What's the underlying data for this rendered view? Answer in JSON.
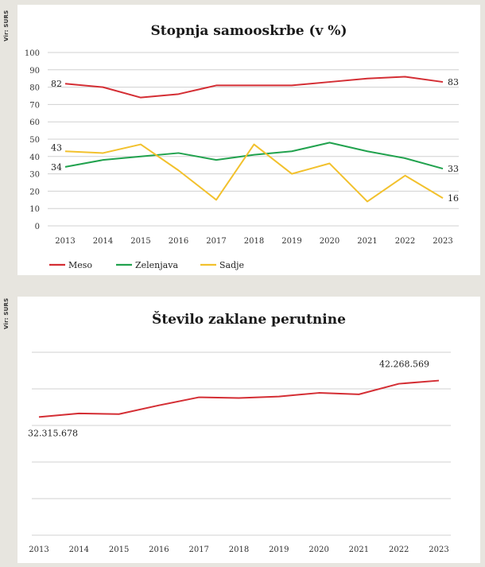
{
  "source_label": "Vir: SURS",
  "chart_data": [
    {
      "type": "line",
      "title": "Stopnja samooskrbe (v %)",
      "x": [
        "2013",
        "2014",
        "2015",
        "2016",
        "2017",
        "2018",
        "2019",
        "2020",
        "2021",
        "2022",
        "2023"
      ],
      "ylim": [
        0,
        100
      ],
      "yticks": [
        "100",
        "90",
        "80",
        "70",
        "60",
        "50",
        "40",
        "30",
        "20",
        "10",
        "0"
      ],
      "grid": true,
      "legend_position": "bottom-left",
      "series": [
        {
          "name": "Meso",
          "color": "#d42e34",
          "values": [
            82,
            80,
            74,
            76,
            81,
            81,
            81,
            83,
            85,
            86,
            83
          ],
          "start_label": "82",
          "end_label": "83"
        },
        {
          "name": "Zelenjava",
          "color": "#21a24e",
          "values": [
            34,
            38,
            40,
            42,
            38,
            41,
            43,
            48,
            43,
            39,
            33
          ],
          "start_label": "34",
          "end_label": "33"
        },
        {
          "name": "Sadje",
          "color": "#f2c12d",
          "values": [
            43,
            42,
            47,
            32,
            15,
            47,
            30,
            36,
            14,
            29,
            16
          ],
          "start_label": "43",
          "end_label": "16"
        }
      ]
    },
    {
      "type": "line",
      "title": "Število zaklane perutnine",
      "x": [
        "2013",
        "2014",
        "2015",
        "2016",
        "2017",
        "2018",
        "2019",
        "2020",
        "2021",
        "2022",
        "2023"
      ],
      "ylim": [
        0,
        50000000
      ],
      "grid": true,
      "series": [
        {
          "color": "#d42e34",
          "values": [
            32315678,
            33300000,
            33100000,
            35500000,
            37700000,
            37500000,
            37900000,
            38900000,
            38500000,
            41400000,
            42268569
          ],
          "start_label": "32.315.678",
          "end_label": "42.268.569"
        }
      ]
    }
  ]
}
